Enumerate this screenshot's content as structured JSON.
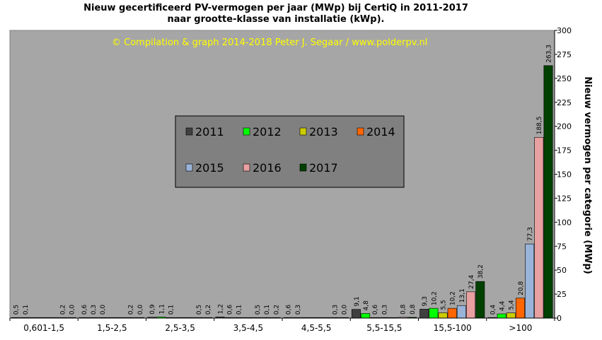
{
  "title_line1": "Nieuw  gecertificeerd PV-vermogen per jaar (MWp) bij CertiQ in 2011-2017",
  "title_line2": "naar grootte-klasse van installatie (kWp).",
  "credit": "© Compilation  & graph 2014-2018 Peter J. Segaar / www.polderpv.nl",
  "chart_data": {
    "type": "bar",
    "title": "Nieuw gecertificeerd PV-vermogen per jaar (MWp) bij CertiQ in 2011-2017 naar grootte-klasse van installatie (kWp).",
    "ylabel": "Nieuw vermogen per categorie (MWp)",
    "xlabel": "",
    "ylim": [
      0,
      300
    ],
    "yticks": [
      0,
      25,
      50,
      75,
      100,
      125,
      150,
      175,
      200,
      225,
      250,
      275,
      300
    ],
    "categories": [
      "0,601-1,5",
      "1,5-2,5",
      "2,5-3,5",
      "3,5-4,5",
      "4,5-5,5",
      "5,5-15,5",
      "15,5-100",
      ">100"
    ],
    "series": [
      {
        "name": "2011",
        "color": "#404040",
        "values": [
          0.5,
          0.6,
          0.9,
          1.2,
          0.6,
          9.1,
          9.3,
          0.4
        ],
        "labels": [
          "0,5",
          "0,6",
          "0,9",
          "1,2",
          "0,6",
          "9,1",
          "9,3",
          "0,4"
        ]
      },
      {
        "name": "2012",
        "color": "#00ff00",
        "values": [
          0.1,
          0.3,
          1.1,
          0.6,
          0.3,
          4.8,
          10.2,
          4.4
        ],
        "labels": [
          "0,1",
          "0,3",
          "1,1",
          "0,6",
          "0,3",
          "4,8",
          "10,2",
          "4,4"
        ]
      },
      {
        "name": "2013",
        "color": "#cccc00",
        "values": [
          0.0,
          0.0,
          0.1,
          0.1,
          0.0,
          0.6,
          5.5,
          5.4
        ],
        "labels": [
          "",
          "0,0",
          "0,1",
          "0,1",
          "",
          "0,6",
          "5,5",
          "5,4"
        ]
      },
      {
        "name": "2014",
        "color": "#ff6600",
        "values": [
          0.0,
          0.0,
          0.0,
          0.0,
          0.0,
          0.3,
          10.2,
          20.8
        ],
        "labels": [
          "",
          "",
          "",
          "",
          "",
          "0,3",
          "10,2",
          "20,8"
        ]
      },
      {
        "name": "2015",
        "color": "#99b3d9",
        "values": [
          0.0,
          0.0,
          0.0,
          0.5,
          0.0,
          0.0,
          13.1,
          77.3
        ],
        "labels": [
          "",
          "",
          "",
          "0,5",
          "",
          "",
          "13,1",
          "77,3"
        ]
      },
      {
        "name": "2016",
        "color": "#e8a0a0",
        "values": [
          0.2,
          0.2,
          0.5,
          0.1,
          0.3,
          0.8,
          27.4,
          188.5
        ],
        "labels": [
          "0,2",
          "0,2",
          "0,5",
          "0,1",
          "0,3",
          "0,8",
          "27,4",
          "188,5"
        ]
      },
      {
        "name": "2017",
        "color": "#004000",
        "values": [
          0.0,
          0.0,
          0.2,
          0.2,
          0.0,
          0.8,
          38.2,
          263.3
        ],
        "labels": [
          "0,0",
          "0,0",
          "0,2",
          "0,2",
          "0,0",
          "0,8",
          "38,2",
          "263,3"
        ]
      }
    ],
    "legend_position": "center",
    "grid": false,
    "plot_background": "#a6a6a6"
  }
}
